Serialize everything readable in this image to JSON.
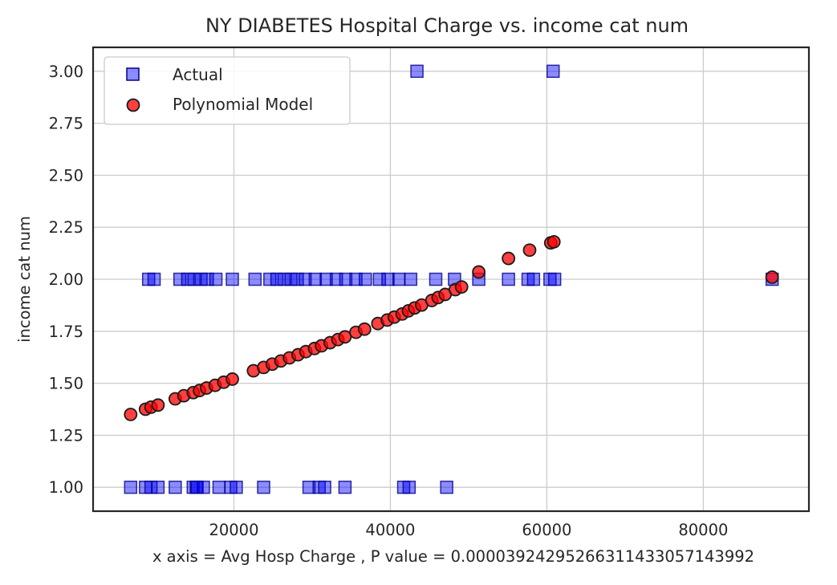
{
  "chart_data": {
    "type": "scatter",
    "title": "NY DIABETES Hospital Charge vs. income cat num",
    "xlabel": "x axis = Avg Hosp Charge , P value = 0.00003924295266311433057143992",
    "ylabel": "income cat num",
    "xlim": [
      2000,
      93500
    ],
    "ylim": [
      0.885,
      3.115
    ],
    "xticks": [
      20000,
      40000,
      60000,
      80000
    ],
    "xtick_labels": [
      "20000",
      "40000",
      "60000",
      "80000"
    ],
    "yticks": [
      1.0,
      1.25,
      1.5,
      1.75,
      2.0,
      2.25,
      2.5,
      2.75,
      3.0
    ],
    "ytick_labels": [
      "1.00",
      "1.25",
      "1.50",
      "1.75",
      "2.00",
      "2.25",
      "2.50",
      "2.75",
      "3.00"
    ],
    "grid": true,
    "legend_position": "top-left",
    "series": [
      {
        "name": "Actual",
        "marker": "square",
        "color": "#0000ff",
        "x": [
          6800,
          8700,
          9400,
          10300,
          12500,
          14800,
          15200,
          15300,
          16100,
          18100,
          19600,
          20300,
          23800,
          29600,
          30900,
          31600,
          34200,
          41700,
          42400,
          47200,
          9100,
          9800,
          13100,
          14100,
          14900,
          15800,
          16600,
          17700,
          19800,
          22700,
          24600,
          25500,
          26400,
          27300,
          28100,
          29100,
          30400,
          31800,
          33100,
          34300,
          35600,
          36800,
          38600,
          39700,
          41100,
          42600,
          45800,
          48200,
          51300,
          55100,
          57600,
          58300,
          60400,
          61000,
          88800,
          43400,
          60800
        ],
        "y": [
          1,
          1,
          1,
          1,
          1,
          1,
          1,
          1,
          1,
          1,
          1,
          1,
          1,
          1,
          1,
          1,
          1,
          1,
          1,
          1,
          2,
          2,
          2,
          2,
          2,
          2,
          2,
          2,
          2,
          2,
          2,
          2,
          2,
          2,
          2,
          2,
          2,
          2,
          2,
          2,
          2,
          2,
          2,
          2,
          2,
          2,
          2,
          2,
          2,
          2,
          2,
          2,
          2,
          2,
          2,
          3,
          3
        ]
      },
      {
        "name": "Polynomial Model",
        "marker": "circle",
        "color": "#ff0000",
        "x": [
          6800,
          8700,
          9400,
          10300,
          12500,
          13600,
          14800,
          15600,
          16500,
          17600,
          18700,
          19800,
          22500,
          23800,
          24900,
          26000,
          27100,
          28200,
          29200,
          30300,
          31200,
          32300,
          33300,
          34200,
          35600,
          36700,
          38400,
          39600,
          40500,
          41500,
          42300,
          43100,
          44000,
          45300,
          46100,
          47000,
          48300,
          49100,
          51300,
          55100,
          57800,
          60500,
          60900,
          88800
        ],
        "y": [
          1.35,
          1.375,
          1.385,
          1.395,
          1.425,
          1.44,
          1.455,
          1.465,
          1.477,
          1.49,
          1.505,
          1.52,
          1.56,
          1.576,
          1.592,
          1.607,
          1.622,
          1.637,
          1.652,
          1.667,
          1.68,
          1.695,
          1.71,
          1.723,
          1.745,
          1.76,
          1.787,
          1.804,
          1.818,
          1.833,
          1.848,
          1.862,
          1.876,
          1.898,
          1.912,
          1.927,
          1.95,
          1.963,
          2.035,
          2.1,
          2.14,
          2.175,
          2.18,
          2.01
        ]
      }
    ]
  }
}
